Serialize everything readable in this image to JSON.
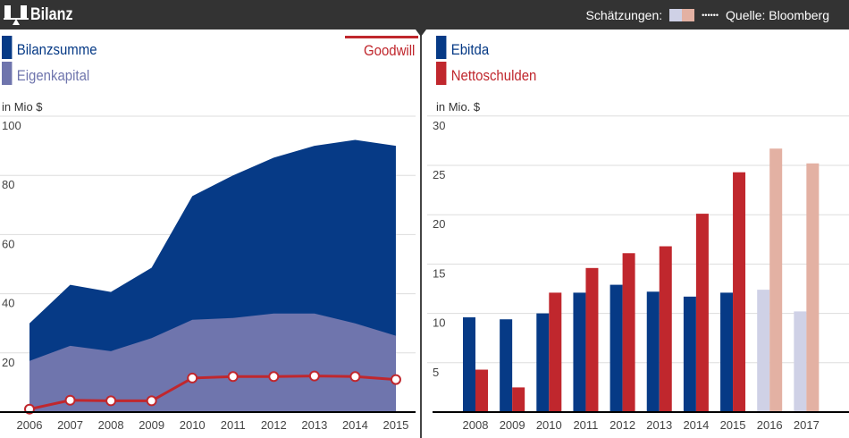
{
  "header": {
    "title": "Bilanz",
    "estimates_label": "Schätzungen:",
    "dots": "••••••",
    "source": "Quelle: Bloomberg",
    "logo_icon": "balance-scale-icon"
  },
  "colors": {
    "header_bg": "#333333",
    "bilanzsumme": "#063a86",
    "eigenkapital": "#6f75ad",
    "goodwill": "#c0272d",
    "ebitda": "#063a86",
    "nettoschulden": "#c0272d",
    "ebitda_estimate": "#cfd1e6",
    "nettoschulden_estimate": "#e3b1a3"
  },
  "left": {
    "legend": {
      "bilanzsumme": "Bilanzsumme",
      "eigenkapital": "Eigenkapital",
      "goodwill": "Goodwill"
    },
    "unit": "in Mio $"
  },
  "right": {
    "legend": {
      "ebitda": "Ebitda",
      "nettoschulden": "Nettoschulden"
    },
    "unit": "in Mio. $"
  },
  "chart_data": [
    {
      "type": "area",
      "x": [
        "2006",
        "2007",
        "2008",
        "2009",
        "2010",
        "2011",
        "2012",
        "2013",
        "2014",
        "2015"
      ],
      "ylim": [
        0,
        100
      ],
      "yticks": [
        20,
        40,
        60,
        80,
        100
      ],
      "grid": true,
      "series": [
        {
          "name": "Bilanzsumme",
          "type": "area",
          "values": [
            30,
            43,
            40.6,
            48.8,
            73,
            80,
            86,
            90,
            92,
            90
          ]
        },
        {
          "name": "Eigenkapital",
          "type": "area",
          "values": [
            17.3,
            22.4,
            20.6,
            25,
            31.2,
            31.8,
            33.3,
            33.3,
            30,
            25.8
          ]
        },
        {
          "name": "Goodwill",
          "type": "line",
          "values": [
            1,
            4,
            3.8,
            3.8,
            11.5,
            12,
            12,
            12.2,
            12,
            11
          ]
        }
      ],
      "ylabel": "in Mio $"
    },
    {
      "type": "bar",
      "categories": [
        "2008",
        "2009",
        "2010",
        "2011",
        "2012",
        "2013",
        "2014",
        "2015",
        "2016",
        "2017"
      ],
      "estimates": [
        "2016",
        "2017"
      ],
      "ylim": [
        0,
        30
      ],
      "yticks": [
        5,
        10,
        15,
        20,
        25,
        30
      ],
      "grid": true,
      "series": [
        {
          "name": "Ebitda",
          "values": [
            9.6,
            9.4,
            10,
            12.1,
            12.9,
            12.2,
            11.7,
            12.1,
            12.4,
            10.2
          ]
        },
        {
          "name": "Nettoschulden",
          "values": [
            4.3,
            2.5,
            12.1,
            14.6,
            16.1,
            16.8,
            20.1,
            24.3,
            26.7,
            25.2
          ]
        }
      ],
      "ylabel": "in Mio. $"
    }
  ]
}
